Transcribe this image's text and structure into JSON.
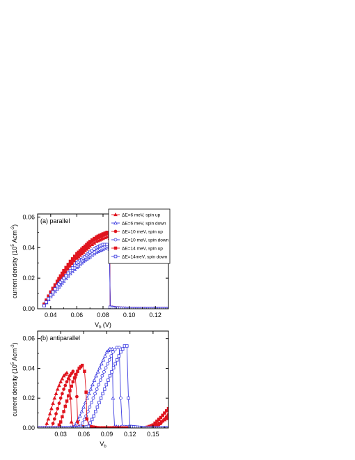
{
  "chart_data": [
    {
      "type": "line",
      "panel_label": "(a) parallel",
      "xlabel_main": "V",
      "xlabel_sub": "b",
      "xlabel_unit": " (V)",
      "ylabel_main": "current density (10",
      "ylabel_sup1": "5",
      "ylabel_mid": " Acm",
      "ylabel_sup2": "-2",
      "ylabel_end": ")",
      "xlim": [
        0.03,
        0.13
      ],
      "ylim": [
        0,
        0.062
      ],
      "xticks": [
        0.04,
        0.06,
        0.08,
        0.1,
        0.12
      ],
      "xtick_labels": [
        "0.04",
        "0.06",
        "0.08",
        "0.10",
        "0.12"
      ],
      "yticks": [
        0.0,
        0.02,
        0.04,
        0.06
      ],
      "ytick_labels": [
        "0.00",
        "0.02",
        "0.04",
        "0.06"
      ],
      "legend_position": "top-right",
      "series": [
        {
          "name": "ΔE=6 meV, spin up",
          "color": "#e0141e",
          "marker": "tri-filled",
          "x": [
            0.035,
            0.04,
            0.045,
            0.05,
            0.055,
            0.06,
            0.065,
            0.07,
            0.075,
            0.08,
            0.083,
            0.085,
            0.0855,
            0.09,
            0.1,
            0.11,
            0.12,
            0.13
          ],
          "y": [
            0.002,
            0.009,
            0.016,
            0.022,
            0.028,
            0.033,
            0.037,
            0.041,
            0.044,
            0.046,
            0.047,
            0.046,
            0.001,
            0.0005,
            0,
            0,
            0,
            0
          ]
        },
        {
          "name": "ΔE=6 meV, spin down",
          "color": "#3a3ae0",
          "marker": "tri-open",
          "x": [
            0.035,
            0.04,
            0.045,
            0.05,
            0.055,
            0.06,
            0.065,
            0.07,
            0.075,
            0.08,
            0.083,
            0.085,
            0.0855,
            0.09,
            0.1,
            0.11,
            0.12,
            0.13
          ],
          "y": [
            0.002,
            0.008,
            0.013,
            0.018,
            0.023,
            0.027,
            0.031,
            0.034,
            0.037,
            0.039,
            0.04,
            0.039,
            0.001,
            0.0005,
            0,
            0,
            0,
            0
          ]
        },
        {
          "name": "ΔE=10 meV, spin up",
          "color": "#e0141e",
          "marker": "circle-filled",
          "x": [
            0.035,
            0.04,
            0.045,
            0.05,
            0.055,
            0.06,
            0.065,
            0.07,
            0.075,
            0.08,
            0.083,
            0.085,
            0.0855,
            0.09,
            0.1,
            0.11,
            0.12,
            0.13
          ],
          "y": [
            0.003,
            0.01,
            0.017,
            0.024,
            0.03,
            0.035,
            0.039,
            0.043,
            0.046,
            0.048,
            0.049,
            0.047,
            0.001,
            0.0005,
            0,
            0,
            0,
            0
          ]
        },
        {
          "name": "ΔE=10 meV, spin down",
          "color": "#3a3ae0",
          "marker": "circle-open",
          "x": [
            0.035,
            0.04,
            0.045,
            0.05,
            0.055,
            0.06,
            0.065,
            0.07,
            0.075,
            0.08,
            0.083,
            0.085,
            0.0855,
            0.09,
            0.1,
            0.11,
            0.12,
            0.13
          ],
          "y": [
            0.002,
            0.008,
            0.014,
            0.019,
            0.024,
            0.028,
            0.032,
            0.035,
            0.038,
            0.04,
            0.041,
            0.04,
            0.001,
            0.0005,
            0,
            0,
            0,
            0
          ]
        },
        {
          "name": "ΔE=14 meV, spin up",
          "color": "#e0141e",
          "marker": "square-filled",
          "x": [
            0.035,
            0.04,
            0.045,
            0.05,
            0.055,
            0.06,
            0.065,
            0.07,
            0.075,
            0.08,
            0.083,
            0.085,
            0.0855,
            0.09,
            0.1,
            0.11,
            0.12,
            0.13
          ],
          "y": [
            0.003,
            0.011,
            0.018,
            0.025,
            0.031,
            0.036,
            0.04,
            0.044,
            0.047,
            0.049,
            0.05,
            0.048,
            0.001,
            0.0005,
            0,
            0,
            0,
            0
          ]
        },
        {
          "name": "ΔE=14meV, spin down",
          "color": "#3a3ae0",
          "marker": "square-open",
          "x": [
            0.035,
            0.04,
            0.045,
            0.05,
            0.055,
            0.06,
            0.065,
            0.07,
            0.075,
            0.08,
            0.083,
            0.085,
            0.0855,
            0.09,
            0.1,
            0.11,
            0.12,
            0.13
          ],
          "y": [
            0.002,
            0.009,
            0.015,
            0.02,
            0.025,
            0.03,
            0.033,
            0.037,
            0.04,
            0.042,
            0.042,
            0.041,
            0.001,
            0.0005,
            0,
            0,
            0,
            0
          ]
        }
      ]
    },
    {
      "type": "line",
      "panel_label": "(b) antiparallel",
      "xlabel_main": "V",
      "xlabel_sub": "b",
      "xlabel_unit": "",
      "ylabel_main": "current density (10",
      "ylabel_sup1": "5",
      "ylabel_mid": " Acm",
      "ylabel_sup2": "-2",
      "ylabel_end": ")",
      "xlim": [
        0.0,
        0.17
      ],
      "ylim": [
        0,
        0.065
      ],
      "xticks": [
        0.03,
        0.06,
        0.09,
        0.12,
        0.15
      ],
      "xtick_labels": [
        "0.03",
        "0.06",
        "0.09",
        "0.12",
        "0.15"
      ],
      "yticks": [
        0.0,
        0.02,
        0.04,
        0.06
      ],
      "ytick_labels": [
        "0.00",
        "0.02",
        "0.04",
        "0.06"
      ],
      "series": [
        {
          "name": "ΔE=6 meV, spin up",
          "color": "#e0141e",
          "marker": "tri-filled",
          "x": [
            0.0,
            0.01,
            0.014,
            0.018,
            0.022,
            0.026,
            0.03,
            0.034,
            0.038,
            0.041,
            0.043,
            0.044,
            0.046,
            0.06,
            0.08,
            0.1,
            0.12,
            0.14,
            0.15,
            0.16,
            0.17
          ],
          "y": [
            0,
            0,
            0.006,
            0.013,
            0.02,
            0.026,
            0.031,
            0.035,
            0.037,
            0.033,
            0.02,
            0.004,
            0.001,
            0,
            0,
            0,
            0,
            0,
            0.001,
            0.004,
            0.007
          ]
        },
        {
          "name": "ΔE=6 meV, spin down",
          "color": "#3a3ae0",
          "marker": "tri-open",
          "x": [
            0.0,
            0.04,
            0.048,
            0.055,
            0.062,
            0.069,
            0.076,
            0.083,
            0.09,
            0.094,
            0.097,
            0.098,
            0.1,
            0.12,
            0.17
          ],
          "y": [
            0,
            0,
            0.001,
            0.008,
            0.017,
            0.026,
            0.035,
            0.043,
            0.051,
            0.053,
            0.053,
            0.02,
            0.001,
            0,
            0
          ]
        },
        {
          "name": "ΔE=10 meV, spin up",
          "color": "#e0141e",
          "marker": "circle-filled",
          "x": [
            0.0,
            0.018,
            0.022,
            0.026,
            0.03,
            0.034,
            0.038,
            0.042,
            0.046,
            0.049,
            0.051,
            0.052,
            0.055,
            0.07,
            0.09,
            0.11,
            0.13,
            0.15,
            0.16,
            0.17
          ],
          "y": [
            0,
            0,
            0.006,
            0.013,
            0.02,
            0.026,
            0.031,
            0.035,
            0.038,
            0.034,
            0.021,
            0.004,
            0.001,
            0,
            0,
            0,
            0,
            0,
            0.003,
            0.009
          ]
        },
        {
          "name": "ΔE=10 meV, spin down",
          "color": "#3a3ae0",
          "marker": "circle-open",
          "x": [
            0.0,
            0.048,
            0.056,
            0.063,
            0.07,
            0.077,
            0.084,
            0.091,
            0.098,
            0.103,
            0.106,
            0.108,
            0.11,
            0.13,
            0.17
          ],
          "y": [
            0,
            0,
            0.001,
            0.008,
            0.017,
            0.026,
            0.035,
            0.043,
            0.051,
            0.054,
            0.054,
            0.02,
            0.001,
            0,
            0
          ]
        },
        {
          "name": "ΔE=14 meV, spin up",
          "color": "#e0141e",
          "marker": "square-filled",
          "x": [
            0.0,
            0.026,
            0.03,
            0.034,
            0.038,
            0.042,
            0.046,
            0.05,
            0.054,
            0.058,
            0.061,
            0.063,
            0.064,
            0.067,
            0.08,
            0.1,
            0.12,
            0.14,
            0.15,
            0.16,
            0.17
          ],
          "y": [
            0,
            0,
            0.004,
            0.011,
            0.018,
            0.025,
            0.031,
            0.036,
            0.04,
            0.042,
            0.038,
            0.024,
            0.006,
            0.001,
            0,
            0,
            0,
            0,
            0.002,
            0.007,
            0.013
          ]
        },
        {
          "name": "ΔE=14meV, spin down",
          "color": "#3a3ae0",
          "marker": "square-open",
          "x": [
            0.0,
            0.058,
            0.066,
            0.073,
            0.08,
            0.087,
            0.094,
            0.101,
            0.108,
            0.113,
            0.116,
            0.118,
            0.12,
            0.14,
            0.17
          ],
          "y": [
            0,
            0,
            0.001,
            0.008,
            0.017,
            0.026,
            0.035,
            0.043,
            0.051,
            0.055,
            0.055,
            0.02,
            0.001,
            0,
            0
          ]
        }
      ]
    }
  ]
}
